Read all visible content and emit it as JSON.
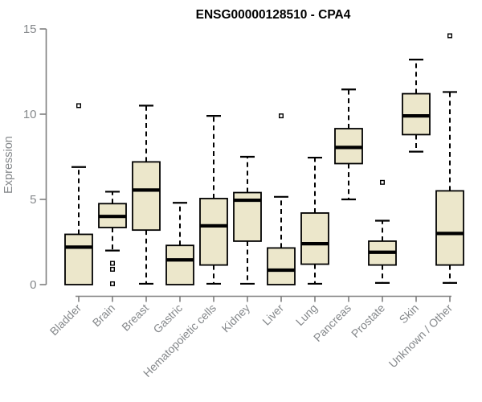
{
  "chart_data": {
    "type": "boxplot",
    "title": "ENSG00000128510 - CPA4",
    "ylabel": "Expression",
    "xlabel": "",
    "ylim": [
      0,
      15
    ],
    "yticks": [
      0,
      5,
      10,
      15
    ],
    "grid": false,
    "legend": false,
    "colors": {
      "box_fill": "#ECE7CB",
      "box_border": "#000000",
      "median": "#000000",
      "whisker": "#000000",
      "outlier": "#000000",
      "axis": "#7F7F7F",
      "tick_label": "#85888B",
      "title": "#000000",
      "background": "#FFFFFF"
    },
    "categories": [
      "Bladder",
      "Brain",
      "Breast",
      "Gastric",
      "Hematopoietic cells",
      "Kidney",
      "Liver",
      "Lung",
      "Pancreas",
      "Prostate",
      "Skin",
      "Unknown / Other"
    ],
    "series": [
      {
        "name": "Bladder",
        "whisker_low": 0,
        "q1": 0,
        "median": 2.2,
        "q3": 2.95,
        "whisker_high": 6.9,
        "outliers": [
          10.5
        ]
      },
      {
        "name": "Brain",
        "whisker_low": 2.0,
        "q1": 3.35,
        "median": 4.0,
        "q3": 4.75,
        "whisker_high": 5.45,
        "outliers": [
          1.25,
          0.9,
          0.05
        ]
      },
      {
        "name": "Breast",
        "whisker_low": 0.05,
        "q1": 3.2,
        "median": 5.55,
        "q3": 7.2,
        "whisker_high": 10.5,
        "outliers": []
      },
      {
        "name": "Gastric",
        "whisker_low": 0,
        "q1": 0,
        "median": 1.45,
        "q3": 2.3,
        "whisker_high": 4.8,
        "outliers": []
      },
      {
        "name": "Hematopoietic cells",
        "whisker_low": 0.05,
        "q1": 1.15,
        "median": 3.45,
        "q3": 5.05,
        "whisker_high": 9.9,
        "outliers": []
      },
      {
        "name": "Kidney",
        "whisker_low": 0.05,
        "q1": 2.55,
        "median": 4.95,
        "q3": 5.4,
        "whisker_high": 7.5,
        "outliers": []
      },
      {
        "name": "Liver",
        "whisker_low": 0,
        "q1": 0,
        "median": 0.85,
        "q3": 2.15,
        "whisker_high": 5.15,
        "outliers": [
          9.9
        ]
      },
      {
        "name": "Lung",
        "whisker_low": 0.05,
        "q1": 1.2,
        "median": 2.4,
        "q3": 4.2,
        "whisker_high": 7.45,
        "outliers": []
      },
      {
        "name": "Pancreas",
        "whisker_low": 5.0,
        "q1": 7.1,
        "median": 8.05,
        "q3": 9.15,
        "whisker_high": 11.45,
        "outliers": []
      },
      {
        "name": "Prostate",
        "whisker_low": 0.1,
        "q1": 1.15,
        "median": 1.9,
        "q3": 2.55,
        "whisker_high": 3.75,
        "outliers": [
          6.0
        ]
      },
      {
        "name": "Skin",
        "whisker_low": 7.8,
        "q1": 8.8,
        "median": 9.9,
        "q3": 11.2,
        "whisker_high": 13.2,
        "outliers": []
      },
      {
        "name": "Unknown / Other",
        "whisker_low": 0.1,
        "q1": 1.15,
        "median": 3.0,
        "q3": 5.5,
        "whisker_high": 11.3,
        "outliers": [
          14.6
        ]
      }
    ]
  }
}
